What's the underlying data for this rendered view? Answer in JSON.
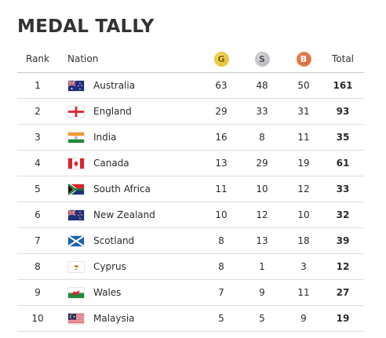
{
  "title": "MEDAL TALLY",
  "headers": {
    "rank": "Rank",
    "nation": "Nation",
    "gold": "G",
    "silver": "S",
    "bronze": "B",
    "total": "Total"
  },
  "colors": {
    "gold": "#e3c02b",
    "silver": "#b6b8bd",
    "bronze": "#dd6e3f",
    "rule": "#dddddd"
  },
  "rows": [
    {
      "rank": "1",
      "nation": "Australia",
      "flag": "flag-australia",
      "gold": "63",
      "silver": "48",
      "bronze": "50",
      "total": "161"
    },
    {
      "rank": "2",
      "nation": "England",
      "flag": "flag-england",
      "gold": "29",
      "silver": "33",
      "bronze": "31",
      "total": "93"
    },
    {
      "rank": "3",
      "nation": "India",
      "flag": "flag-india",
      "gold": "16",
      "silver": "8",
      "bronze": "11",
      "total": "35"
    },
    {
      "rank": "4",
      "nation": "Canada",
      "flag": "flag-canada",
      "gold": "13",
      "silver": "29",
      "bronze": "19",
      "total": "61"
    },
    {
      "rank": "5",
      "nation": "South Africa",
      "flag": "flag-south-africa",
      "gold": "11",
      "silver": "10",
      "bronze": "12",
      "total": "33"
    },
    {
      "rank": "6",
      "nation": "New Zealand",
      "flag": "flag-new-zealand",
      "gold": "10",
      "silver": "12",
      "bronze": "10",
      "total": "32"
    },
    {
      "rank": "7",
      "nation": "Scotland",
      "flag": "flag-scotland",
      "gold": "8",
      "silver": "13",
      "bronze": "18",
      "total": "39"
    },
    {
      "rank": "8",
      "nation": "Cyprus",
      "flag": "flag-cyprus",
      "gold": "8",
      "silver": "1",
      "bronze": "3",
      "total": "12"
    },
    {
      "rank": "9",
      "nation": "Wales",
      "flag": "flag-wales",
      "gold": "7",
      "silver": "9",
      "bronze": "11",
      "total": "27"
    },
    {
      "rank": "10",
      "nation": "Malaysia",
      "flag": "flag-malaysia",
      "gold": "5",
      "silver": "5",
      "bronze": "9",
      "total": "19"
    }
  ]
}
